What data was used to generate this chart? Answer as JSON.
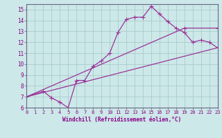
{
  "xlabel": "Windchill (Refroidissement éolien,°C)",
  "bg_color": "#cce8e8",
  "line_color": "#993399",
  "xlim": [
    0,
    23
  ],
  "ylim": [
    6,
    15.5
  ],
  "xticks": [
    0,
    1,
    2,
    3,
    4,
    5,
    6,
    7,
    8,
    9,
    10,
    11,
    12,
    13,
    14,
    15,
    16,
    17,
    18,
    19,
    20,
    21,
    22,
    23
  ],
  "yticks": [
    6,
    7,
    8,
    9,
    10,
    11,
    12,
    13,
    14,
    15
  ],
  "series1_x": [
    0,
    2,
    3,
    4,
    5,
    6,
    7,
    8,
    9,
    10,
    11,
    12,
    13,
    14,
    15,
    16,
    17,
    18,
    19,
    20,
    21,
    22,
    23
  ],
  "series1_y": [
    7.0,
    7.5,
    6.9,
    6.5,
    6.0,
    8.5,
    8.5,
    9.8,
    10.3,
    11.0,
    12.9,
    14.1,
    14.3,
    14.3,
    15.3,
    14.6,
    13.9,
    13.3,
    12.9,
    12.0,
    12.2,
    12.0,
    11.5
  ],
  "series2_x": [
    0,
    19,
    23
  ],
  "series2_y": [
    7.0,
    13.3,
    13.3
  ],
  "series3_x": [
    0,
    23
  ],
  "series3_y": [
    7.0,
    11.5
  ],
  "grid_color": "#aacccc",
  "tick_color": "#880088",
  "xlabel_color": "#880088"
}
